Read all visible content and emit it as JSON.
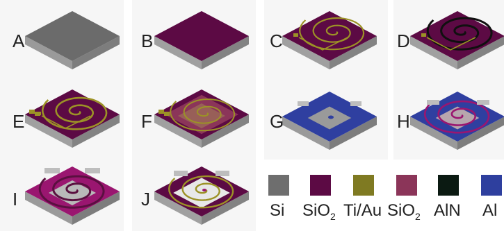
{
  "panels": [
    {
      "id": "A",
      "label": "A",
      "state": "si"
    },
    {
      "id": "B",
      "label": "B",
      "state": "sio2"
    },
    {
      "id": "C",
      "label": "C",
      "state": "coil"
    },
    {
      "id": "D",
      "label": "D",
      "state": "coil-dark"
    },
    {
      "id": "E",
      "label": "E",
      "state": "coil-pads"
    },
    {
      "id": "F",
      "label": "F",
      "state": "sio2-top"
    },
    {
      "id": "G",
      "label": "G",
      "state": "al"
    },
    {
      "id": "H",
      "label": "H",
      "state": "al-coil"
    },
    {
      "id": "I",
      "label": "I",
      "state": "released"
    },
    {
      "id": "J",
      "label": "J",
      "state": "final"
    }
  ],
  "legend": [
    {
      "key": "si",
      "name": "Si",
      "sub": "",
      "color": "#6e6e6e"
    },
    {
      "key": "sio2",
      "name": "SiO",
      "sub": "2",
      "color": "#5c0a44"
    },
    {
      "key": "tiau",
      "name": "Ti/Au",
      "sub": "",
      "color": "#7f7a22"
    },
    {
      "key": "sio2b",
      "name": "SiO",
      "sub": "2",
      "color": "#8b3559"
    },
    {
      "key": "aln",
      "name": "AlN",
      "sub": "",
      "color": "#0b1a12"
    },
    {
      "key": "al",
      "name": "Al",
      "sub": "",
      "color": "#2e3f9e"
    }
  ],
  "colors": {
    "si_top": "#6b6b6b",
    "si_left": "#9a9a9a",
    "si_right": "#7d7d7d",
    "sio2_top": "#5c0a44",
    "sio2_left": "#a0a0a0",
    "sio2_right": "#838383",
    "gold": "#9c9226",
    "aln": "#101010",
    "al": "#2f3fa0",
    "sio2b": "#8b3559",
    "magenta": "#9a1670"
  }
}
